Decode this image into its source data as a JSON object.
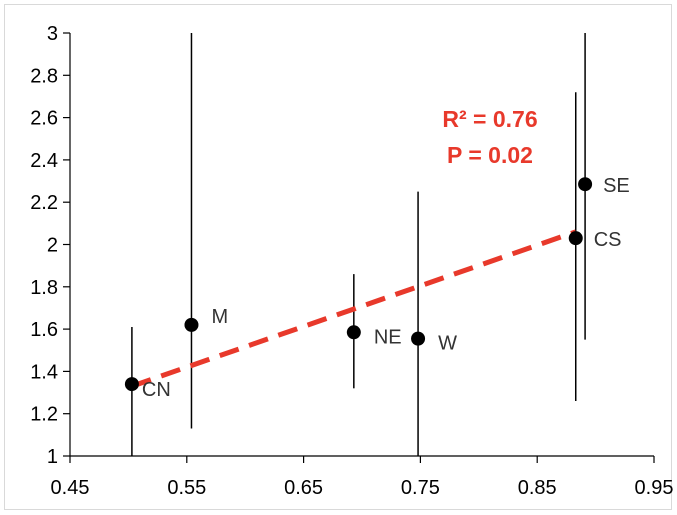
{
  "chart_data": {
    "type": "scatter",
    "title": "",
    "xlabel": "",
    "ylabel": "",
    "xlim": [
      0.45,
      0.95
    ],
    "ylim": [
      1,
      3
    ],
    "x_ticks": [
      "0.45",
      "0.55",
      "0.65",
      "0.75",
      "0.85",
      "0.95"
    ],
    "y_ticks": [
      "1",
      "1.2",
      "1.4",
      "1.6",
      "1.8",
      "2",
      "2.2",
      "2.4",
      "2.6",
      "2.8",
      "3"
    ],
    "grid": false,
    "legend": "none",
    "points": [
      {
        "label": "CN",
        "x": 0.503,
        "y": 1.34,
        "err_low": 1.0,
        "err_high": 1.61
      },
      {
        "label": "M",
        "x": 0.554,
        "y": 1.62,
        "err_low": 1.13,
        "err_high": 3.0
      },
      {
        "label": "NE",
        "x": 0.693,
        "y": 1.585,
        "err_low": 1.32,
        "err_high": 1.86
      },
      {
        "label": "W",
        "x": 0.748,
        "y": 1.555,
        "err_low": 1.0,
        "err_high": 2.25
      },
      {
        "label": "CS",
        "x": 0.883,
        "y": 2.03,
        "err_low": 1.26,
        "err_high": 2.72
      },
      {
        "label": "SE",
        "x": 0.891,
        "y": 2.285,
        "err_low": 1.55,
        "err_high": 3.0
      }
    ],
    "trendline": {
      "x": [
        0.503,
        0.883
      ],
      "y": [
        1.33,
        2.06
      ],
      "style": "dashed",
      "color": "#e8392b"
    },
    "annotations": [
      "R² = 0.76",
      "P = 0.02"
    ],
    "colors": {
      "points": "#000000",
      "trendline": "#e8392b",
      "annotation": "#e8392b"
    }
  }
}
